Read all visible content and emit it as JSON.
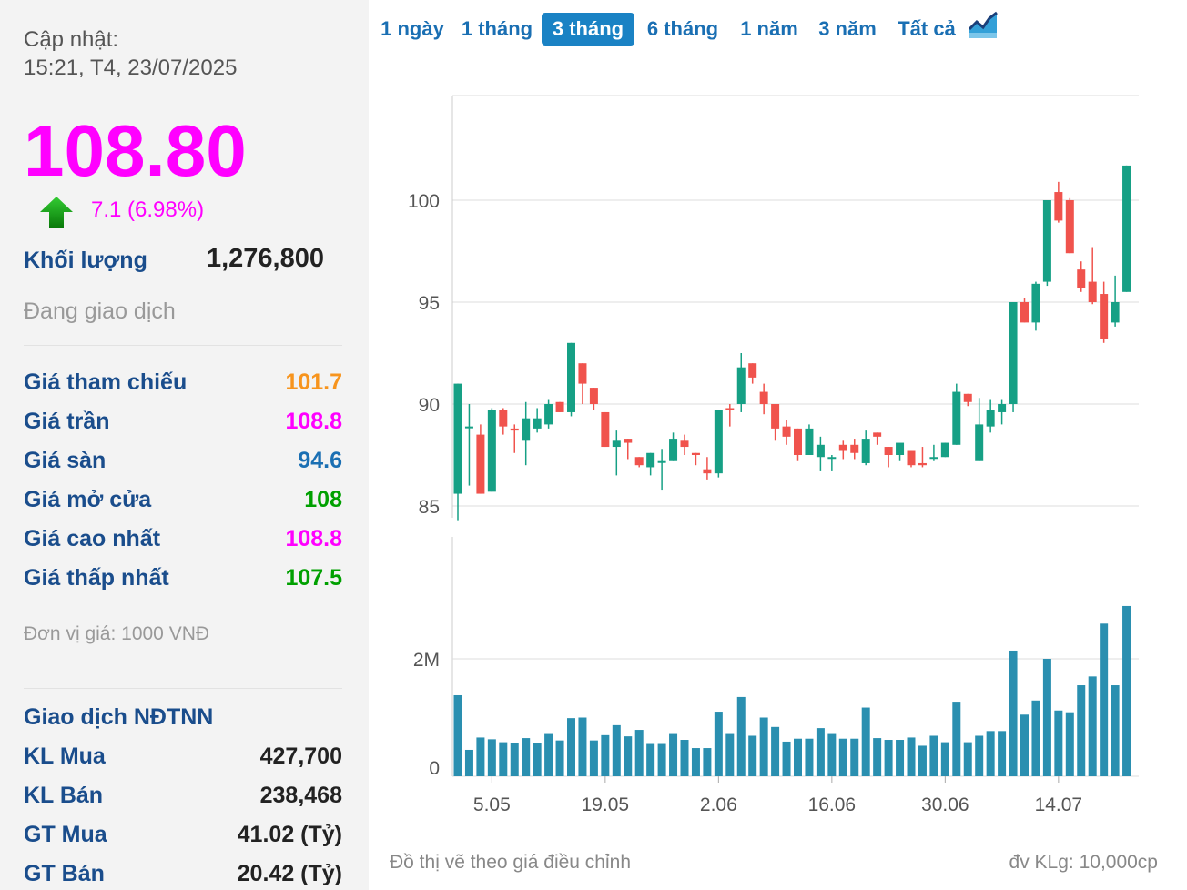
{
  "header": {
    "update_label": "Cập nhật:",
    "update_time": "15:21, T4, 23/07/2025"
  },
  "quote": {
    "price": "108.80",
    "change": "7.1 (6.98%)",
    "direction": "up",
    "volume_label": "Khối lượng",
    "volume_value": "1,276,800",
    "status": "Đang giao dịch"
  },
  "price_table": [
    {
      "label": "Giá tham chiếu",
      "value": "101.7",
      "color": "#f7941d"
    },
    {
      "label": "Giá trần",
      "value": "108.8",
      "color": "#ff00ff"
    },
    {
      "label": "Giá sàn",
      "value": "94.6",
      "color": "#1a6fb3"
    },
    {
      "label": "Giá mở cửa",
      "value": "108",
      "color": "#00a000"
    },
    {
      "label": "Giá cao nhất",
      "value": "108.8",
      "color": "#ff00ff"
    },
    {
      "label": "Giá thấp nhất",
      "value": "107.5",
      "color": "#00a000"
    }
  ],
  "unit_note": "Đơn vị giá: 1000 VNĐ",
  "foreign": {
    "title": "Giao dịch NĐTNN",
    "rows": [
      {
        "label": "KL Mua",
        "value": "427,700"
      },
      {
        "label": "KL Bán",
        "value": "238,468"
      },
      {
        "label": "GT Mua",
        "value": "41.02 (Tỷ)"
      },
      {
        "label": "GT Bán",
        "value": "20.42 (Tỷ)"
      }
    ]
  },
  "range_tabs": [
    {
      "label": "1 ngày",
      "active": false
    },
    {
      "label": "1 tháng",
      "active": false
    },
    {
      "label": "3 tháng",
      "active": true
    },
    {
      "label": "6 tháng",
      "active": false
    },
    {
      "label": "1 năm",
      "active": false
    },
    {
      "label": "3 năm",
      "active": false
    },
    {
      "label": "Tất cả",
      "active": false
    }
  ],
  "chart_icon": "area-chart-icon",
  "footnote_left": "Đồ thị vẽ theo giá điều chỉnh",
  "footnote_right": "đv KLg: 10,000cp",
  "colors": {
    "up": "#16a085",
    "down": "#f0534d",
    "volume": "#2a8fb0"
  },
  "chart_data": [
    {
      "type": "candlestick",
      "y_ticks": [
        85,
        90,
        95,
        100
      ],
      "ylim": [
        84.5,
        105
      ],
      "x_ticks": [
        "5.05",
        "19.05",
        "2.06",
        "16.06",
        "30.06",
        "14.07"
      ],
      "x_tick_session": [
        3,
        13,
        23,
        33,
        43,
        53
      ],
      "grid": true,
      "candles": [
        {
          "o": 85.6,
          "h": 91.0,
          "l": 84.3,
          "c": 91.0
        },
        {
          "o": 88.9,
          "h": 90.0,
          "l": 86.0,
          "c": 88.9
        },
        {
          "o": 88.5,
          "h": 89.0,
          "l": 85.6,
          "c": 85.6
        },
        {
          "o": 85.7,
          "h": 89.8,
          "l": 85.7,
          "c": 89.7
        },
        {
          "o": 89.7,
          "h": 89.8,
          "l": 88.5,
          "c": 88.9
        },
        {
          "o": 88.8,
          "h": 89.0,
          "l": 87.6,
          "c": 88.7
        },
        {
          "o": 88.2,
          "h": 90.1,
          "l": 87.0,
          "c": 89.3
        },
        {
          "o": 88.8,
          "h": 89.8,
          "l": 88.6,
          "c": 89.3
        },
        {
          "o": 89.0,
          "h": 90.2,
          "l": 88.8,
          "c": 90.0
        },
        {
          "o": 90.1,
          "h": 90.1,
          "l": 89.6,
          "c": 89.6
        },
        {
          "o": 89.6,
          "h": 93.0,
          "l": 89.4,
          "c": 93.0
        },
        {
          "o": 92.0,
          "h": 92.0,
          "l": 90.0,
          "c": 91.0
        },
        {
          "o": 90.8,
          "h": 90.8,
          "l": 89.7,
          "c": 90.0
        },
        {
          "o": 89.6,
          "h": 89.6,
          "l": 87.9,
          "c": 87.9
        },
        {
          "o": 87.9,
          "h": 88.7,
          "l": 86.5,
          "c": 88.2
        },
        {
          "o": 88.3,
          "h": 88.3,
          "l": 87.3,
          "c": 88.1
        },
        {
          "o": 87.4,
          "h": 87.4,
          "l": 86.9,
          "c": 87.0
        },
        {
          "o": 86.9,
          "h": 87.6,
          "l": 86.5,
          "c": 87.6
        },
        {
          "o": 87.2,
          "h": 87.8,
          "l": 85.8,
          "c": 87.2
        },
        {
          "o": 87.2,
          "h": 88.6,
          "l": 87.2,
          "c": 88.3
        },
        {
          "o": 88.2,
          "h": 88.5,
          "l": 87.5,
          "c": 87.9
        },
        {
          "o": 87.6,
          "h": 87.6,
          "l": 87.0,
          "c": 87.5
        },
        {
          "o": 86.8,
          "h": 87.4,
          "l": 86.3,
          "c": 86.6
        },
        {
          "o": 86.6,
          "h": 89.7,
          "l": 86.4,
          "c": 89.7
        },
        {
          "o": 89.8,
          "h": 90.0,
          "l": 88.9,
          "c": 89.7
        },
        {
          "o": 90.0,
          "h": 92.5,
          "l": 89.6,
          "c": 91.8
        },
        {
          "o": 92.0,
          "h": 92.0,
          "l": 91.0,
          "c": 91.3
        },
        {
          "o": 90.6,
          "h": 91.0,
          "l": 89.5,
          "c": 90.0
        },
        {
          "o": 90.0,
          "h": 90.0,
          "l": 88.2,
          "c": 88.8
        },
        {
          "o": 88.9,
          "h": 89.2,
          "l": 88.0,
          "c": 88.4
        },
        {
          "o": 88.8,
          "h": 88.8,
          "l": 87.2,
          "c": 87.5
        },
        {
          "o": 87.5,
          "h": 89.0,
          "l": 87.5,
          "c": 88.8
        },
        {
          "o": 87.4,
          "h": 88.4,
          "l": 86.7,
          "c": 88.0
        },
        {
          "o": 87.4,
          "h": 87.5,
          "l": 86.7,
          "c": 87.4
        },
        {
          "o": 88.0,
          "h": 88.2,
          "l": 87.3,
          "c": 87.7
        },
        {
          "o": 88.0,
          "h": 88.3,
          "l": 87.3,
          "c": 87.6
        },
        {
          "o": 87.1,
          "h": 88.7,
          "l": 87.0,
          "c": 88.3
        },
        {
          "o": 88.6,
          "h": 88.6,
          "l": 88.0,
          "c": 88.4
        },
        {
          "o": 87.9,
          "h": 87.9,
          "l": 86.9,
          "c": 87.5
        },
        {
          "o": 87.5,
          "h": 88.0,
          "l": 87.2,
          "c": 88.1
        },
        {
          "o": 87.7,
          "h": 87.7,
          "l": 86.9,
          "c": 87.0
        },
        {
          "o": 87.1,
          "h": 87.9,
          "l": 86.9,
          "c": 87.0
        },
        {
          "o": 87.4,
          "h": 88.0,
          "l": 87.2,
          "c": 87.4
        },
        {
          "o": 87.4,
          "h": 88.1,
          "l": 87.4,
          "c": 88.1
        },
        {
          "o": 88.0,
          "h": 91.0,
          "l": 88.0,
          "c": 90.6
        },
        {
          "o": 90.5,
          "h": 90.5,
          "l": 89.9,
          "c": 90.1
        },
        {
          "o": 87.2,
          "h": 90.3,
          "l": 87.2,
          "c": 89.0
        },
        {
          "o": 88.9,
          "h": 90.2,
          "l": 88.6,
          "c": 89.7
        },
        {
          "o": 89.6,
          "h": 90.2,
          "l": 89.0,
          "c": 90.0
        },
        {
          "o": 90.0,
          "h": 95.0,
          "l": 89.6,
          "c": 95.0
        },
        {
          "o": 95.0,
          "h": 95.2,
          "l": 94.0,
          "c": 94.0
        },
        {
          "o": 94.0,
          "h": 96.0,
          "l": 93.6,
          "c": 95.9
        },
        {
          "o": 96.0,
          "h": 100.0,
          "l": 95.8,
          "c": 100.0
        },
        {
          "o": 100.4,
          "h": 100.9,
          "l": 98.9,
          "c": 99.0
        },
        {
          "o": 100.0,
          "h": 100.1,
          "l": 97.4,
          "c": 97.4
        },
        {
          "o": 96.6,
          "h": 97.0,
          "l": 95.5,
          "c": 95.7
        },
        {
          "o": 96.0,
          "h": 97.7,
          "l": 94.9,
          "c": 95.0
        },
        {
          "o": 95.4,
          "h": 96.0,
          "l": 93.0,
          "c": 93.2
        },
        {
          "o": 94.0,
          "h": 96.3,
          "l": 93.8,
          "c": 95.0
        },
        {
          "o": 95.5,
          "h": 101.7,
          "l": 95.5,
          "c": 101.7
        }
      ]
    },
    {
      "type": "bar",
      "y_ticks": [
        0,
        2
      ],
      "y_tick_labels": [
        "0",
        "2M"
      ],
      "ylim": [
        0,
        3.44
      ],
      "grid": true,
      "values": [
        1.38,
        0.45,
        0.66,
        0.63,
        0.58,
        0.56,
        0.65,
        0.56,
        0.72,
        0.61,
        0.99,
        1.0,
        0.61,
        0.7,
        0.87,
        0.68,
        0.79,
        0.55,
        0.55,
        0.72,
        0.62,
        0.48,
        0.48,
        1.1,
        0.72,
        1.35,
        0.69,
        1.0,
        0.84,
        0.59,
        0.64,
        0.64,
        0.82,
        0.72,
        0.64,
        0.64,
        1.17,
        0.65,
        0.62,
        0.62,
        0.66,
        0.52,
        0.69,
        0.58,
        1.27,
        0.58,
        0.69,
        0.77,
        0.77,
        2.14,
        1.05,
        1.29,
        2.0,
        1.12,
        1.09,
        1.55,
        1.7,
        2.6,
        1.55,
        2.9
      ]
    }
  ]
}
